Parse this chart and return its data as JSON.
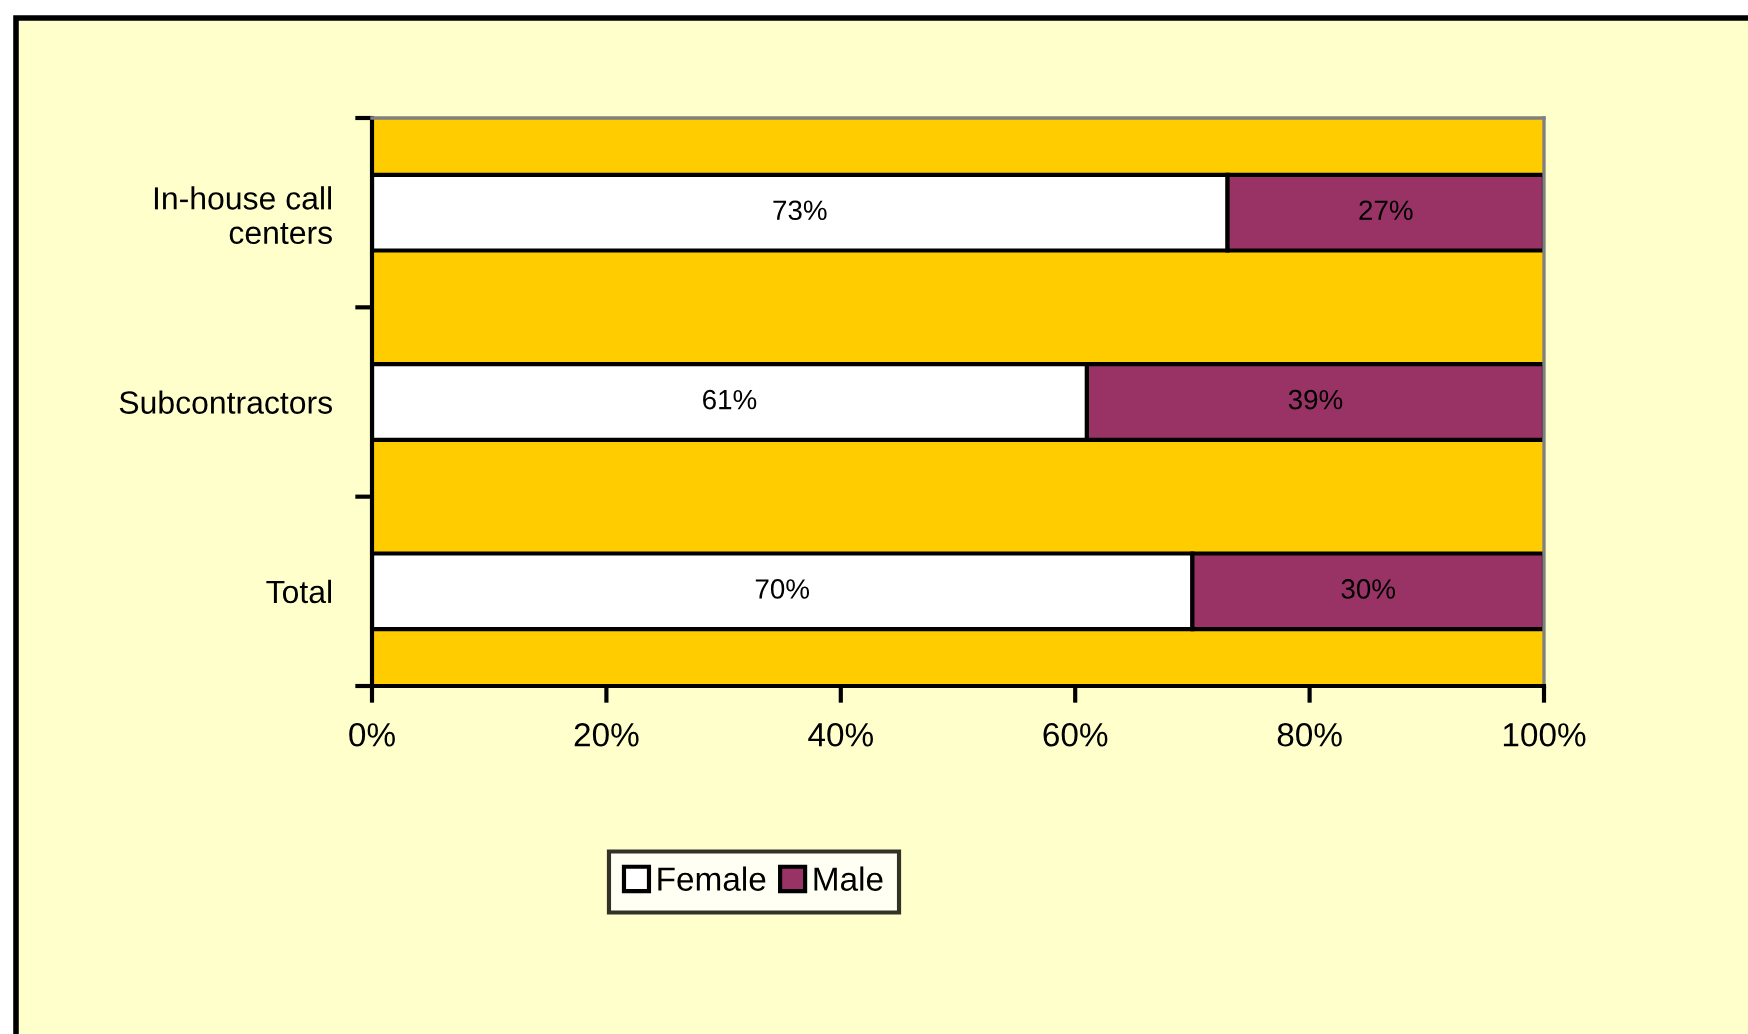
{
  "chart_data": {
    "type": "bar",
    "orientation": "horizontal",
    "stacked": true,
    "categories": [
      "In-house call\ncenters",
      "Subcontractors",
      "Total"
    ],
    "series": [
      {
        "name": "Female",
        "color": "#ffffff",
        "values": [
          73,
          61,
          70
        ],
        "value_labels": [
          "73%",
          "61%",
          "70%"
        ]
      },
      {
        "name": "Male",
        "color": "#993366",
        "values": [
          27,
          39,
          30
        ],
        "value_labels": [
          "27%",
          "39%",
          "30%"
        ]
      }
    ],
    "xlim": [
      0,
      100
    ],
    "xticks": [
      {
        "value": 0,
        "label": "0%"
      },
      {
        "value": 20,
        "label": "20%"
      },
      {
        "value": 40,
        "label": "40%"
      },
      {
        "value": 60,
        "label": "60%"
      },
      {
        "value": 80,
        "label": "80%"
      },
      {
        "value": 100,
        "label": "100%"
      }
    ],
    "grid": false,
    "legend": "bottom"
  }
}
